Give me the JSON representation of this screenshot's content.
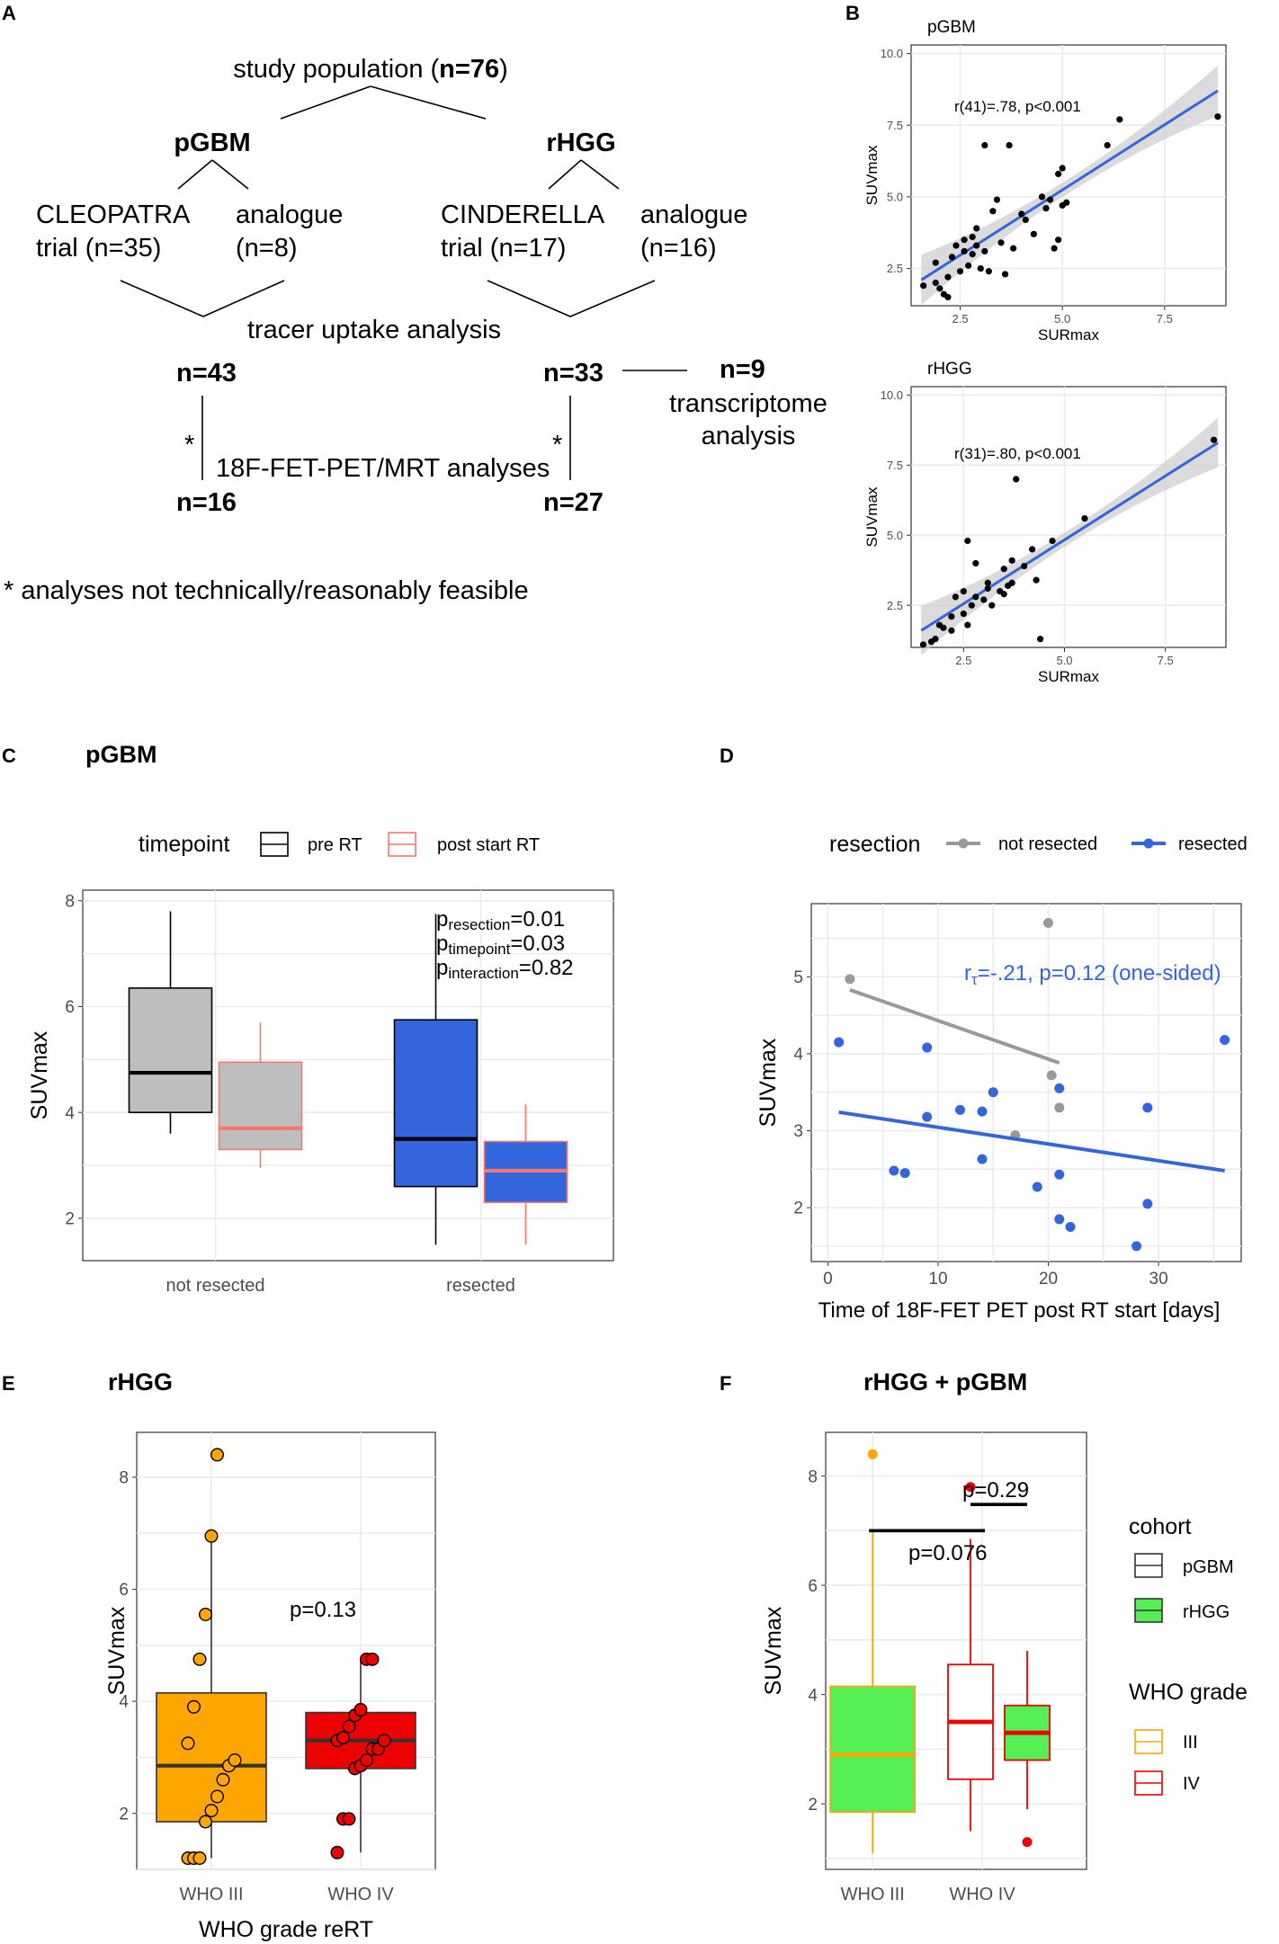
{
  "panels": {
    "A": {
      "letter": "A",
      "study_population_prefix": "study population (",
      "study_population_n": "n=76",
      "study_population_suffix": ")",
      "pgbm_label": "pGBM",
      "rhgg_label": "rHGG",
      "cleopatra_line1": "CLEOPATRA",
      "cleopatra_line2": "trial (n=35)",
      "pgbm_analogue_line1": "analogue",
      "pgbm_analogue_line2": "(n=8)",
      "cinderella_line1": "CINDERELLA",
      "cinderella_line2": "trial (n=17)",
      "rhgg_analogue_line1": "analogue",
      "rhgg_analogue_line2": "(n=16)",
      "tracer_uptake": "tracer uptake analysis",
      "n43": "n=43",
      "n33": "n=33",
      "n9": "n=9",
      "transcriptome_line1": "transcriptome",
      "transcriptome_line2": "analysis",
      "asterisk": "*",
      "pet_mrt": "18F-FET-PET/MRT analyses",
      "n16": "n=16",
      "n27": "n=27",
      "footnote": "* analyses not technically/reasonably feasible"
    },
    "B": {
      "letter": "B"
    },
    "C": {
      "letter": "C"
    },
    "D": {
      "letter": "D"
    },
    "E": {
      "letter": "E"
    },
    "F": {
      "letter": "F"
    }
  },
  "colors": {
    "black": "#000000",
    "salmon": "#f8766d",
    "grey_box": "#bebebe",
    "blue": "#3366dd",
    "grey_point": "#999999",
    "orange": "#ffa500",
    "red": "#ee0000",
    "green": "#55ee55",
    "grid": "#ebebeb",
    "band": "#cccccc"
  },
  "chart_data": [
    {
      "id": "B1",
      "type": "scatter",
      "title": "pGBM",
      "xlabel": "SURmax",
      "ylabel": "SUVmax",
      "xlim": [
        1.3,
        9.0
      ],
      "ylim": [
        1.2,
        10.3
      ],
      "xticks": [
        "2.5",
        "5.0",
        "7.5"
      ],
      "xtick_values": [
        2.5,
        5.0,
        7.5
      ],
      "yticks": [
        "2.5",
        "5.0",
        "7.5",
        "10.0"
      ],
      "ytick_values": [
        2.5,
        5.0,
        7.5,
        10.0
      ],
      "annotation": "r(41)=.78, p<0.001",
      "fit": {
        "x0": 1.55,
        "y0": 2.1,
        "x1": 8.8,
        "y1": 8.7
      },
      "points": [
        [
          1.6,
          1.9
        ],
        [
          1.9,
          2.0
        ],
        [
          1.9,
          2.7
        ],
        [
          2.0,
          1.8
        ],
        [
          2.1,
          1.6
        ],
        [
          2.2,
          1.5
        ],
        [
          2.2,
          2.2
        ],
        [
          2.3,
          2.9
        ],
        [
          2.4,
          3.3
        ],
        [
          2.5,
          2.4
        ],
        [
          2.6,
          3.1
        ],
        [
          2.6,
          3.5
        ],
        [
          2.7,
          2.6
        ],
        [
          2.8,
          3.0
        ],
        [
          2.8,
          3.6
        ],
        [
          2.9,
          3.3
        ],
        [
          2.9,
          3.9
        ],
        [
          3.0,
          2.5
        ],
        [
          3.1,
          3.1
        ],
        [
          3.1,
          6.8
        ],
        [
          3.2,
          2.4
        ],
        [
          3.3,
          4.5
        ],
        [
          3.4,
          4.9
        ],
        [
          3.5,
          3.4
        ],
        [
          3.6,
          2.3
        ],
        [
          3.7,
          6.8
        ],
        [
          3.8,
          3.2
        ],
        [
          4.0,
          4.4
        ],
        [
          4.1,
          4.2
        ],
        [
          4.3,
          3.7
        ],
        [
          4.5,
          5.0
        ],
        [
          4.6,
          4.6
        ],
        [
          4.7,
          4.9
        ],
        [
          4.8,
          3.2
        ],
        [
          4.9,
          3.5
        ],
        [
          4.9,
          5.8
        ],
        [
          5.0,
          6.0
        ],
        [
          5.0,
          4.7
        ],
        [
          5.1,
          4.8
        ],
        [
          6.1,
          6.8
        ],
        [
          6.4,
          7.7
        ],
        [
          8.8,
          7.8
        ]
      ]
    },
    {
      "id": "B2",
      "type": "scatter",
      "title": "rHGG",
      "xlabel": "SURmax",
      "ylabel": "SUVmax",
      "xlim": [
        1.2,
        9.0
      ],
      "ylim": [
        1.0,
        10.3
      ],
      "xticks": [
        "2.5",
        "5.0",
        "7.5"
      ],
      "xtick_values": [
        2.5,
        5.0,
        7.5
      ],
      "yticks": [
        "2.5",
        "5.0",
        "7.5",
        "10.0"
      ],
      "ytick_values": [
        2.5,
        5.0,
        7.5,
        10.0
      ],
      "annotation": "r(31)=.80, p<0.001",
      "fit": {
        "x0": 1.45,
        "y0": 1.6,
        "x1": 8.8,
        "y1": 8.3
      },
      "points": [
        [
          1.5,
          1.1
        ],
        [
          1.7,
          1.2
        ],
        [
          1.8,
          1.3
        ],
        [
          1.9,
          1.8
        ],
        [
          2.0,
          1.7
        ],
        [
          2.2,
          1.6
        ],
        [
          2.2,
          2.1
        ],
        [
          2.3,
          2.8
        ],
        [
          2.5,
          2.2
        ],
        [
          2.5,
          3.0
        ],
        [
          2.6,
          1.8
        ],
        [
          2.6,
          4.8
        ],
        [
          2.7,
          2.5
        ],
        [
          2.8,
          4.0
        ],
        [
          2.8,
          2.8
        ],
        [
          3.0,
          2.7
        ],
        [
          3.1,
          3.1
        ],
        [
          3.1,
          3.3
        ],
        [
          3.2,
          2.5
        ],
        [
          3.4,
          3.0
        ],
        [
          3.5,
          2.9
        ],
        [
          3.5,
          3.8
        ],
        [
          3.6,
          3.2
        ],
        [
          3.7,
          3.3
        ],
        [
          3.7,
          4.1
        ],
        [
          3.8,
          7.0
        ],
        [
          4.0,
          3.9
        ],
        [
          4.2,
          4.5
        ],
        [
          4.3,
          3.4
        ],
        [
          4.4,
          1.3
        ],
        [
          4.7,
          4.8
        ],
        [
          5.5,
          5.6
        ],
        [
          8.7,
          8.4
        ]
      ]
    },
    {
      "id": "C",
      "type": "box",
      "title": "pGBM",
      "ylabel": "SUVmax",
      "ylim": [
        1.2,
        8.2
      ],
      "yticks": [
        "2",
        "4",
        "6",
        "8"
      ],
      "ytick_values": [
        2,
        4,
        6,
        8
      ],
      "categories": [
        "not resected",
        "resected"
      ],
      "legend_title": "timepoint",
      "legend": [
        "pre RT",
        "post start RT"
      ],
      "series": [
        {
          "name": "pre RT",
          "boxes": [
            {
              "min": 3.6,
              "q1": 4.0,
              "median": 4.75,
              "q3": 6.35,
              "max": 7.8
            },
            {
              "min": 1.5,
              "q1": 2.6,
              "median": 3.5,
              "q3": 5.75,
              "max": 7.75
            }
          ]
        },
        {
          "name": "post start RT",
          "boxes": [
            {
              "min": 2.95,
              "q1": 3.3,
              "median": 3.7,
              "q3": 4.95,
              "max": 5.7
            },
            {
              "min": 1.5,
              "q1": 2.3,
              "median": 2.9,
              "q3": 3.45,
              "max": 4.15
            }
          ]
        }
      ],
      "annotations": [
        {
          "main": "p",
          "sub": "resection",
          "rest": "=0.01"
        },
        {
          "main": "p",
          "sub": "timepoint",
          "rest": "=0.03"
        },
        {
          "main": "p",
          "sub": "interaction",
          "rest": "=0.82"
        }
      ]
    },
    {
      "id": "D",
      "type": "scatter",
      "xlabel": "Time of 18F-FET PET post RT start [days]",
      "ylabel": "SUVmax",
      "xlim": [
        -1.5,
        37.5
      ],
      "ylim": [
        1.3,
        5.95
      ],
      "xticks": [
        "0",
        "10",
        "20",
        "30"
      ],
      "xtick_values": [
        0,
        10,
        20,
        30
      ],
      "yticks": [
        "2",
        "3",
        "4",
        "5"
      ],
      "ytick_values": [
        2,
        3,
        4,
        5
      ],
      "legend_title": "resection",
      "legend": [
        "not resected",
        "resected"
      ],
      "annotation_prefix": "r",
      "annotation_sub": "τ",
      "annotation_rest": "=-.21, p=0.12 (one-sided)",
      "series": [
        {
          "name": "not resected",
          "points": [
            [
              2,
              4.97
            ],
            [
              17,
              2.94
            ],
            [
              20,
              5.7
            ],
            [
              20.3,
              3.72
            ],
            [
              21,
              3.3
            ]
          ],
          "fit": {
            "x0": 2,
            "y0": 4.83,
            "x1": 21,
            "y1": 3.88
          }
        },
        {
          "name": "resected",
          "points": [
            [
              1,
              4.15
            ],
            [
              6,
              2.48
            ],
            [
              7,
              2.45
            ],
            [
              9,
              3.18
            ],
            [
              9,
              4.08
            ],
            [
              12,
              3.27
            ],
            [
              14,
              2.63
            ],
            [
              14,
              3.25
            ],
            [
              15,
              3.5
            ],
            [
              19,
              2.27
            ],
            [
              21,
              1.85
            ],
            [
              21,
              2.43
            ],
            [
              21,
              3.55
            ],
            [
              22,
              1.75
            ],
            [
              28,
              1.5
            ],
            [
              29,
              2.05
            ],
            [
              29,
              3.3
            ],
            [
              36,
              4.18
            ]
          ],
          "fit": {
            "x0": 1,
            "y0": 3.24,
            "x1": 36,
            "y1": 2.48
          }
        }
      ]
    },
    {
      "id": "E",
      "type": "box",
      "title": "rHGG",
      "xlabel": "WHO grade reRT",
      "ylabel": "SUVmax",
      "ylim": [
        1.0,
        8.8
      ],
      "yticks": [
        "2",
        "4",
        "6",
        "8"
      ],
      "ytick_values": [
        2,
        4,
        6,
        8
      ],
      "categories": [
        "WHO III",
        "WHO IV"
      ],
      "annotation": "p=0.13",
      "boxes": [
        {
          "name": "WHO III",
          "min": 1.2,
          "q1": 1.85,
          "median": 2.85,
          "q3": 4.15,
          "max": 7.0,
          "points": [
            1.2,
            1.2,
            1.2,
            1.85,
            2.05,
            2.3,
            2.6,
            2.85,
            2.95,
            3.25,
            3.9,
            4.75,
            5.55,
            6.95,
            8.4
          ]
        },
        {
          "name": "WHO IV",
          "min": 1.3,
          "q1": 2.8,
          "median": 3.3,
          "q3": 3.8,
          "max": 4.75,
          "points": [
            1.3,
            1.9,
            1.9,
            2.8,
            2.85,
            2.95,
            3.15,
            3.15,
            3.3,
            3.3,
            3.35,
            3.55,
            3.75,
            3.85,
            4.75,
            4.75
          ]
        }
      ]
    },
    {
      "id": "F",
      "type": "box",
      "title": "rHGG + pGBM",
      "ylabel": "SUVmax",
      "ylim": [
        0.8,
        8.8
      ],
      "yticks": [
        "2",
        "4",
        "6",
        "8"
      ],
      "ytick_values": [
        2,
        4,
        6,
        8
      ],
      "categories": [
        "WHO III",
        "WHO IV"
      ],
      "legend_cohort_title": "cohort",
      "legend_cohort": [
        "pGBM",
        "rHGG"
      ],
      "legend_grade_title": "WHO grade",
      "legend_grade": [
        "III",
        "IV"
      ],
      "annotations": [
        "p=0.076",
        "p=0.29"
      ],
      "boxes": [
        {
          "grade": "III",
          "cohort": "rHGG",
          "min": 1.1,
          "q1": 1.85,
          "median": 2.9,
          "q3": 4.15,
          "max": 7.0,
          "outliers": [
            8.4
          ]
        },
        {
          "grade": "IV",
          "cohort": "pGBM",
          "min": 1.5,
          "q1": 2.45,
          "median": 3.5,
          "q3": 4.55,
          "max": 6.85,
          "outliers": [
            7.8
          ]
        },
        {
          "grade": "IV",
          "cohort": "rHGG",
          "min": 1.9,
          "q1": 2.8,
          "median": 3.3,
          "q3": 3.8,
          "max": 4.8,
          "outliers": [
            1.3
          ]
        }
      ]
    }
  ]
}
